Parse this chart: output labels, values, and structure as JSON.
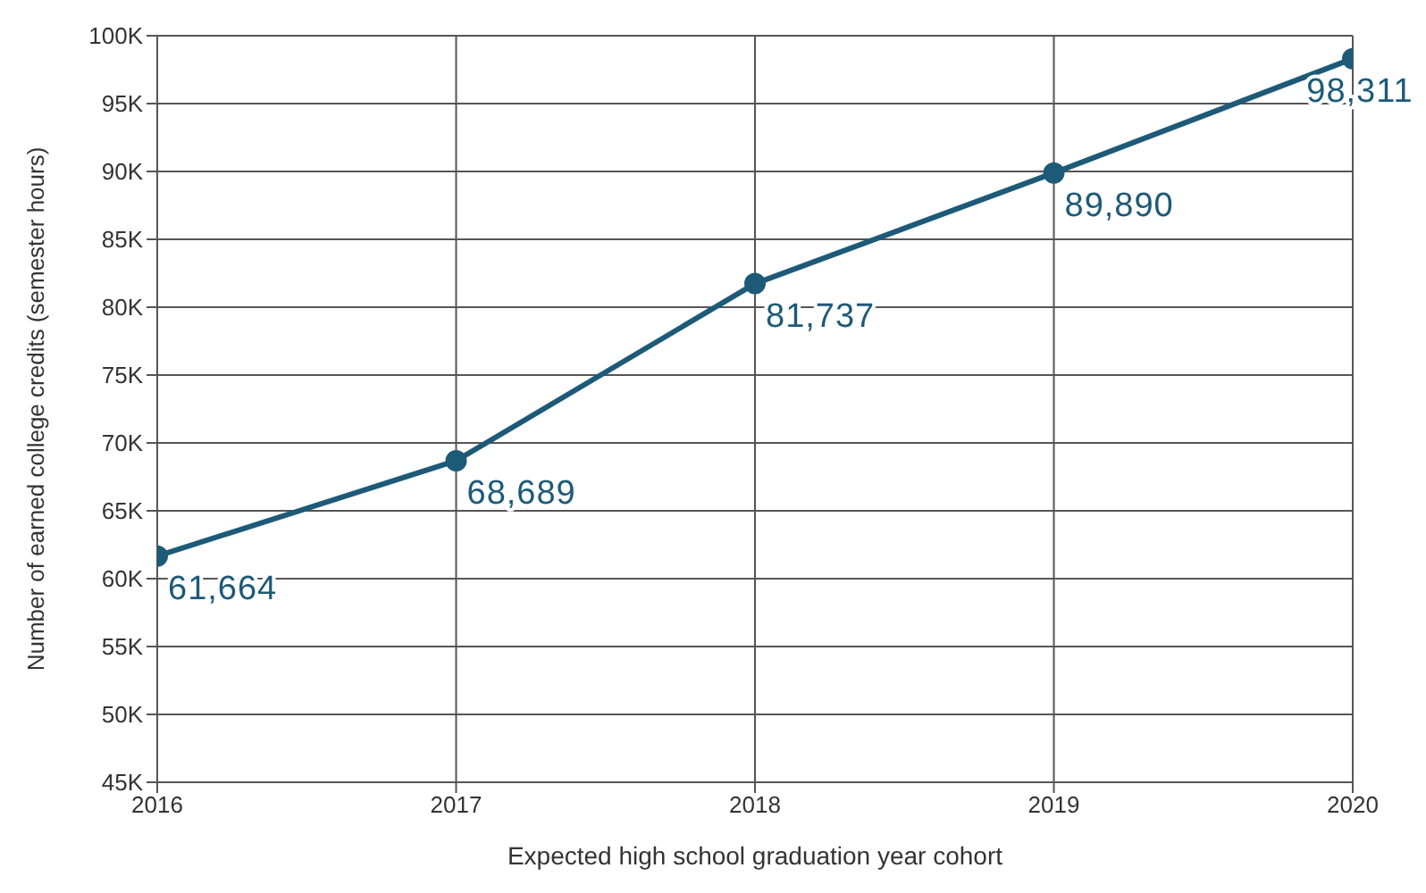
{
  "chart_data": {
    "type": "line",
    "xlabel": "Expected high school graduation year cohort",
    "ylabel": "Number of earned college credits (semester hours)",
    "x": [
      2016,
      2017,
      2018,
      2019,
      2020
    ],
    "series": [
      {
        "color": "#1d5a78",
        "values": [
          61664,
          68689,
          81737,
          89890,
          98311
        ],
        "value_labels": [
          "61,664",
          "68,689",
          "81,737",
          "89,890",
          "98,311"
        ]
      }
    ],
    "xlim": [
      2016,
      2020
    ],
    "xticks": [
      2016,
      2017,
      2018,
      2019,
      2020
    ],
    "ylim": [
      45000,
      100000
    ],
    "yticks": [
      {
        "value": 45000,
        "label": "45K"
      },
      {
        "value": 50000,
        "label": "50K"
      },
      {
        "value": 55000,
        "label": "55K"
      },
      {
        "value": 60000,
        "label": "60K"
      },
      {
        "value": 65000,
        "label": "65K"
      },
      {
        "value": 70000,
        "label": "70K"
      },
      {
        "value": 75000,
        "label": "75K"
      },
      {
        "value": 80000,
        "label": "80K"
      },
      {
        "value": 85000,
        "label": "85K"
      },
      {
        "value": 90000,
        "label": "90K"
      },
      {
        "value": 95000,
        "label": "95K"
      },
      {
        "value": 100000,
        "label": "100K"
      }
    ],
    "grid": true,
    "marker": "circle",
    "line_style": "solid",
    "legend": false
  }
}
